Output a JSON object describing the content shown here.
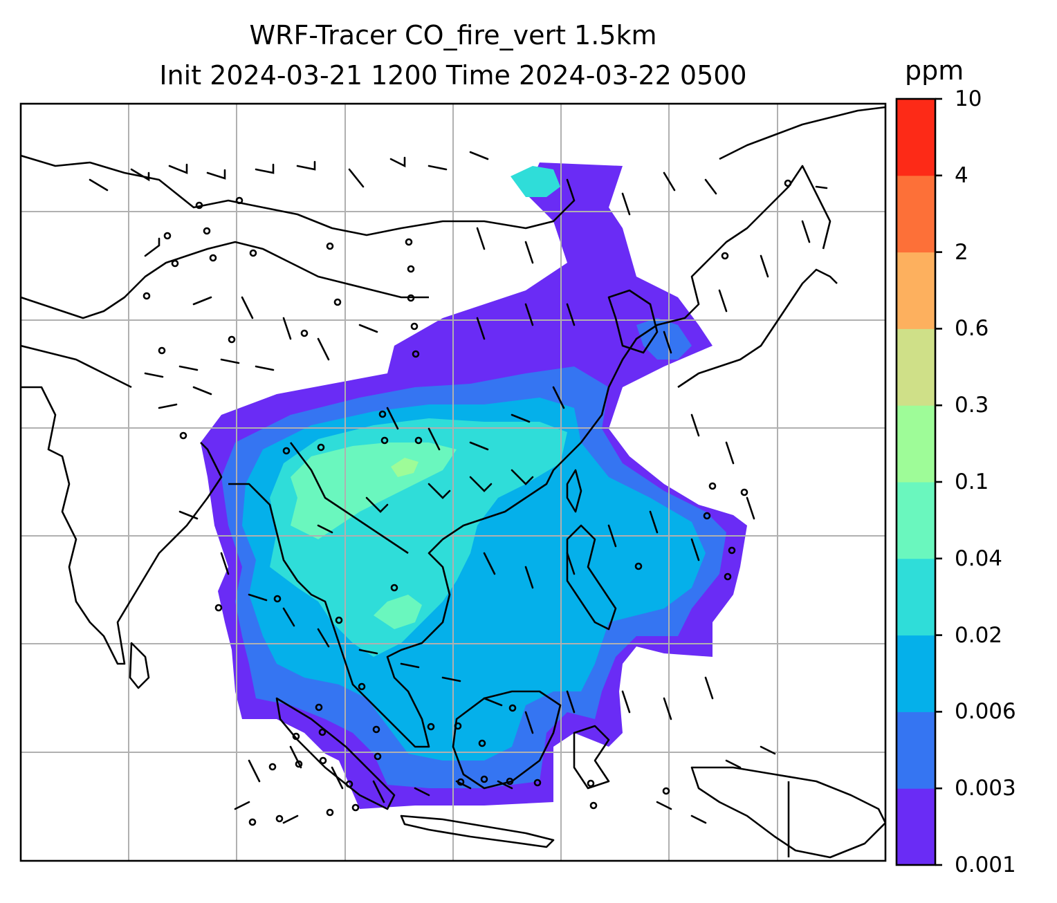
{
  "title": {
    "line1": "WRF-Tracer CO_fire_vert 1.5km",
    "line2": "Init 2024-03-21 1200 Time 2024-03-22 0500"
  },
  "colorbar": {
    "unit": "ppm",
    "levels": [
      "0.001",
      "0.003",
      "0.006",
      "0.02",
      "0.04",
      "0.1",
      "0.3",
      "0.6",
      "2",
      "4",
      "10"
    ],
    "colors": [
      "#6a2cf5",
      "#3575f2",
      "#05b0ea",
      "#2fddd9",
      "#6af7be",
      "#9efc98",
      "#cfe088",
      "#fdb05e",
      "#fd7038",
      "#fd2a17"
    ]
  },
  "map": {
    "coastline_color": "#000000",
    "gridline_color": "#b0b0b0",
    "layers": [
      "coastlines",
      "country-borders",
      "gridlines",
      "co-fire-tracer-fill",
      "wind-barbs"
    ]
  }
}
